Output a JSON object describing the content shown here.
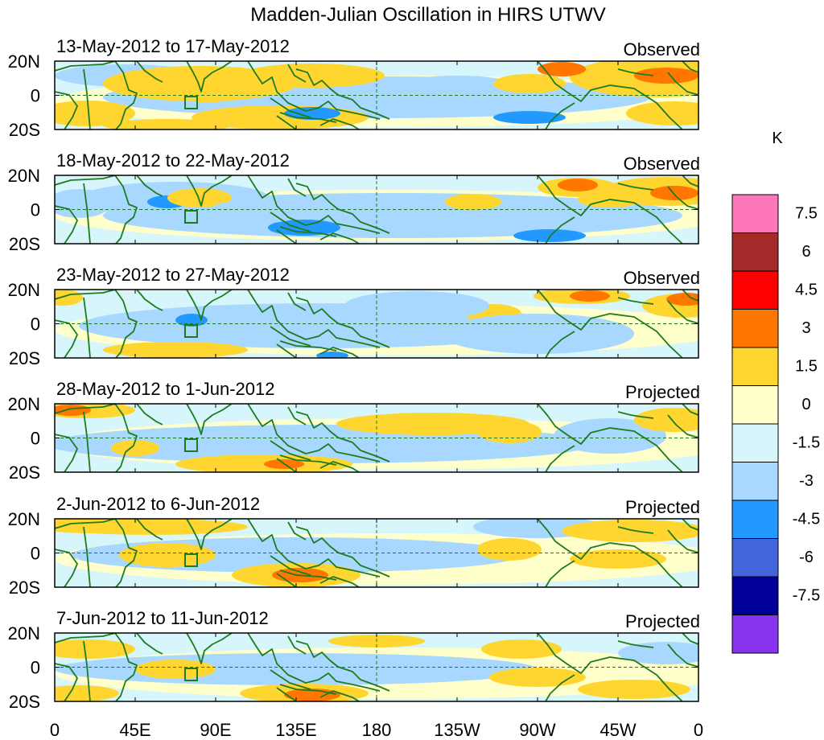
{
  "title": "Madden-Julian Oscillation in HIRS UTWV",
  "panels": [
    {
      "dates": "13-May-2012 to 17-May-2012",
      "status": "Observed"
    },
    {
      "dates": "18-May-2012 to 22-May-2012",
      "status": "Observed"
    },
    {
      "dates": "23-May-2012 to 27-May-2012",
      "status": "Observed"
    },
    {
      "dates": "28-May-2012 to 1-Jun-2012",
      "status": "Projected"
    },
    {
      "dates": "2-Jun-2012 to 6-Jun-2012",
      "status": "Projected"
    },
    {
      "dates": "7-Jun-2012 to 11-Jun-2012",
      "status": "Projected"
    }
  ],
  "lat_labels": [
    "20N",
    "0",
    "20S"
  ],
  "lon_labels": [
    "0",
    "45E",
    "90E",
    "135E",
    "180",
    "135W",
    "90W",
    "45W",
    "0"
  ],
  "colorbar": {
    "unit": "K",
    "tick_labels": [
      "7.5",
      "6",
      "4.5",
      "3",
      "1.5",
      "0",
      "-1.5",
      "-3",
      "-4.5",
      "-6",
      "-7.5"
    ],
    "colors": [
      "#ff77bb",
      "#a52a2a",
      "#ff0000",
      "#ff7700",
      "#ffd530",
      "#ffffcc",
      "#d7f6fb",
      "#a8d8ff",
      "#2299ff",
      "#4466dd",
      "#000099",
      "#8833ee"
    ]
  },
  "colors": {
    "coast": "#1e7b1e",
    "equator": "#1e7b1e"
  }
}
